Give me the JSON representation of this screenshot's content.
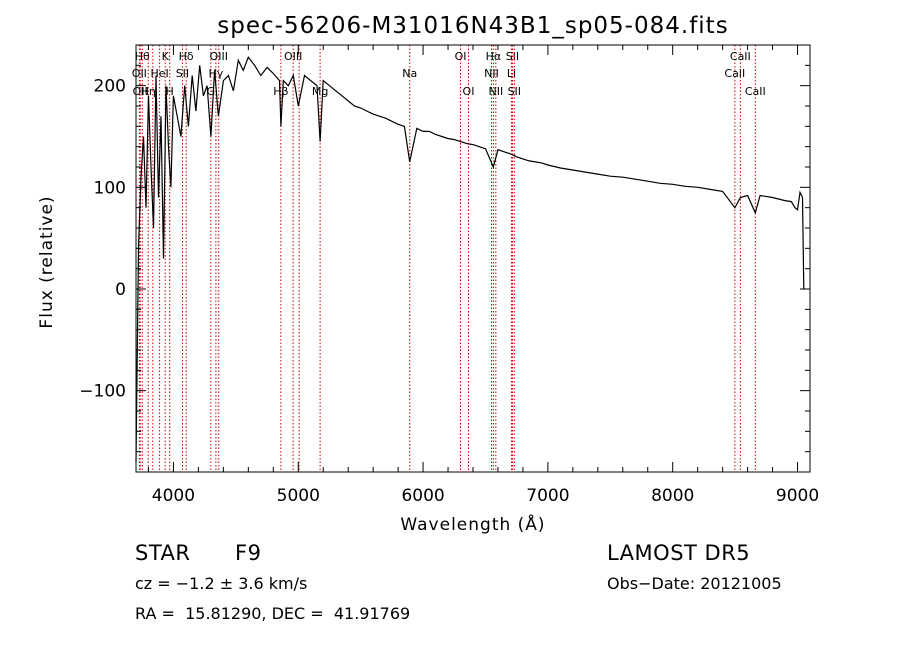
{
  "chart_data": {
    "type": "line",
    "title": "spec-56206-M31016N43B1_sp05-084.fits",
    "xlabel": "Wavelength (Å)",
    "ylabel": "Flux (relative)",
    "xlim": [
      3700,
      9100
    ],
    "ylim": [
      -180,
      240
    ],
    "xticks": [
      4000,
      5000,
      6000,
      7000,
      8000,
      9000
    ],
    "yticks": [
      -100,
      0,
      100,
      200
    ],
    "xtick_labels": [
      "4000",
      "5000",
      "6000",
      "7000",
      "8000",
      "9000"
    ],
    "ytick_labels": [
      "−100",
      "0",
      "100",
      "200"
    ],
    "line_color": "#000000",
    "marker_color": "#cc0000",
    "grid": false,
    "series": [
      {
        "x": [
          3700,
          3720,
          3740,
          3760,
          3780,
          3800,
          3820,
          3840,
          3860,
          3880,
          3900,
          3920,
          3940,
          3960,
          3980,
          4000,
          4030,
          4060,
          4090,
          4120,
          4150,
          4180,
          4210,
          4240,
          4270,
          4300,
          4330,
          4360,
          4400,
          4440,
          4480,
          4520,
          4560,
          4600,
          4650,
          4700,
          4750,
          4800,
          4850,
          4861,
          4880,
          4920,
          4960,
          5000,
          5050,
          5100,
          5150,
          5175,
          5200,
          5250,
          5300,
          5350,
          5400,
          5450,
          5500,
          5550,
          5600,
          5650,
          5700,
          5750,
          5800,
          5850,
          5893,
          5950,
          6000,
          6050,
          6100,
          6150,
          6200,
          6250,
          6300,
          6350,
          6400,
          6450,
          6500,
          6563,
          6600,
          6650,
          6700,
          6750,
          6800,
          6850,
          6900,
          6950,
          7000,
          7100,
          7200,
          7300,
          7400,
          7500,
          7600,
          7700,
          7800,
          7900,
          8000,
          8100,
          8200,
          8300,
          8400,
          8498,
          8542,
          8600,
          8662,
          8700,
          8800,
          8900,
          8950,
          8980,
          9000,
          9020,
          9040,
          9050
        ],
        "values": [
          -170,
          40,
          110,
          150,
          80,
          190,
          120,
          60,
          210,
          90,
          170,
          30,
          200,
          140,
          100,
          190,
          170,
          150,
          200,
          160,
          210,
          175,
          220,
          190,
          200,
          150,
          215,
          170,
          205,
          210,
          195,
          225,
          215,
          228,
          220,
          210,
          218,
          212,
          205,
          160,
          205,
          200,
          210,
          180,
          210,
          205,
          200,
          145,
          205,
          200,
          195,
          190,
          185,
          180,
          178,
          175,
          172,
          170,
          168,
          165,
          162,
          160,
          125,
          158,
          155,
          155,
          152,
          150,
          148,
          147,
          145,
          143,
          142,
          140,
          138,
          120,
          137,
          135,
          133,
          130,
          128,
          126,
          125,
          124,
          122,
          119,
          117,
          115,
          113,
          111,
          110,
          108,
          106,
          104,
          103,
          101,
          100,
          98,
          96,
          80,
          90,
          92,
          75,
          92,
          90,
          87,
          86,
          80,
          78,
          95,
          90,
          0
        ]
      }
    ],
    "line_markers": [
      {
        "x": 3750,
        "label": "Hθ",
        "row": 0
      },
      {
        "x": 3727,
        "label": "OII",
        "row": 1
      },
      {
        "x": 3734,
        "label": "OII",
        "row": 2
      },
      {
        "x": 3798,
        "label": "Hη",
        "row": 2
      },
      {
        "x": 3835,
        "label": "",
        "row": -1
      },
      {
        "x": 3889,
        "label": "HeI",
        "row": 1
      },
      {
        "x": 3934,
        "label": "K",
        "row": 0
      },
      {
        "x": 3970,
        "label": "H",
        "row": 2
      },
      {
        "x": 4072,
        "label": "SII",
        "row": 1
      },
      {
        "x": 4102,
        "label": "Hδ",
        "row": 0
      },
      {
        "x": 4300,
        "label": "G",
        "row": 2
      },
      {
        "x": 4340,
        "label": "Hγ",
        "row": 1
      },
      {
        "x": 4363,
        "label": "OIII",
        "row": 0
      },
      {
        "x": 4861,
        "label": "Hβ",
        "row": 2
      },
      {
        "x": 4959,
        "label": "OIII",
        "row": 0
      },
      {
        "x": 5007,
        "label": "",
        "row": -1
      },
      {
        "x": 5175,
        "label": "Mg",
        "row": 2
      },
      {
        "x": 5893,
        "label": "Na",
        "row": 1
      },
      {
        "x": 6300,
        "label": "OI",
        "row": 0
      },
      {
        "x": 6364,
        "label": "OI",
        "row": 2
      },
      {
        "x": 6548,
        "label": "NII",
        "row": 1
      },
      {
        "x": 6563,
        "label": "Hα",
        "row": 0
      },
      {
        "x": 6583,
        "label": "NII",
        "row": 2
      },
      {
        "x": 6708,
        "label": "Li",
        "row": 1
      },
      {
        "x": 6716,
        "label": "SII",
        "row": 0
      },
      {
        "x": 6731,
        "label": "SII",
        "row": 2
      },
      {
        "x": 8498,
        "label": "CaII",
        "row": 1
      },
      {
        "x": 8542,
        "label": "CaII",
        "row": 0
      },
      {
        "x": 8662,
        "label": "CaII",
        "row": 2
      }
    ]
  },
  "info": {
    "class_label": "STAR",
    "subclass": "F9",
    "survey": "LAMOST DR5",
    "cz": "cz = −1.2 ± 3.6 km/s",
    "obs_date": "Obs−Date: 20121005",
    "coords": "RA =  15.81290, DEC =  41.91769"
  }
}
